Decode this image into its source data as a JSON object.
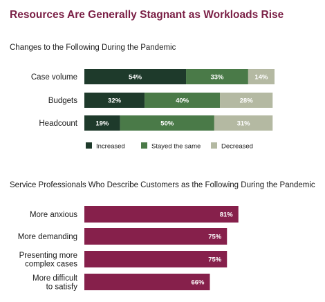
{
  "title": "Resources Are Generally Stagnant as Workloads Rise",
  "colors": {
    "title": "#7a1f45",
    "increased": "#1e3a2b",
    "stayed": "#4a7a48",
    "decreased": "#b4b9a2",
    "customer_bar": "#86204b"
  },
  "chart_data": [
    {
      "type": "bar",
      "orientation": "horizontal",
      "stacked": true,
      "title": "Changes to the Following During the Pandemic",
      "categories": [
        "Case volume",
        "Budgets",
        "Headcount"
      ],
      "series": [
        {
          "name": "Increased",
          "values": [
            54,
            32,
            19
          ],
          "labels": [
            "54%",
            "32%",
            "19%"
          ]
        },
        {
          "name": "Stayed the same",
          "values": [
            33,
            40,
            50
          ],
          "labels": [
            "33%",
            "40%",
            "50%"
          ]
        },
        {
          "name": "Decreased",
          "values": [
            14,
            28,
            31
          ],
          "labels": [
            "14%",
            "28%",
            "31%"
          ]
        }
      ],
      "xlim": [
        0,
        101
      ],
      "legend": "bottom"
    },
    {
      "type": "bar",
      "orientation": "horizontal",
      "title": "Service Professionals Who Describe Customers as the Following During the Pandemic",
      "categories": [
        [
          "More anxious"
        ],
        [
          "More demanding"
        ],
        [
          "Presenting more",
          "complex cases"
        ],
        [
          "More difficult",
          "to satisfy"
        ]
      ],
      "values": [
        81,
        75,
        75,
        66
      ],
      "labels": [
        "81%",
        "75%",
        "75%",
        "66%"
      ],
      "xlim": [
        0,
        100
      ]
    }
  ]
}
